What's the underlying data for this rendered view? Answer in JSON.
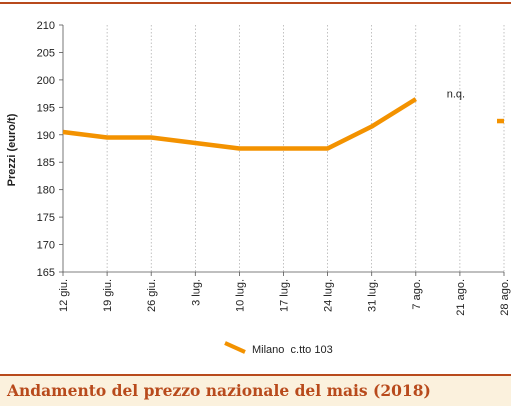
{
  "caption": "Andamento del prezzo nazionale del mais (2018)",
  "colors": {
    "series": "#f39200",
    "accent": "#b84a1c",
    "caption_bg": "#fbf1dd",
    "grid": "#9a9a9a"
  },
  "chart_data": {
    "type": "line",
    "title": "",
    "xlabel": "",
    "ylabel": "Prezzi (euro/t)",
    "ylim": [
      165,
      210
    ],
    "yticks": [
      165,
      170,
      175,
      180,
      185,
      190,
      195,
      200,
      205,
      210
    ],
    "categories": [
      "12 giu.",
      "19 giu.",
      "26 giu.",
      "3 lug.",
      "10 lug.",
      "17 lug.",
      "24 lug.",
      "31 lug.",
      "7 ago.",
      "21 ago.",
      "28 ago."
    ],
    "grid": "vertical",
    "legend_position": "bottom-center",
    "series": [
      {
        "name": "Milano  c.tto 103",
        "values": [
          190.5,
          189.5,
          189.5,
          188.5,
          187.5,
          187.5,
          187.5,
          191.5,
          196.5,
          null,
          192.5
        ]
      }
    ],
    "annotations": [
      {
        "text": "n.q.",
        "category": "21 ago.",
        "value": 197.5
      }
    ]
  }
}
